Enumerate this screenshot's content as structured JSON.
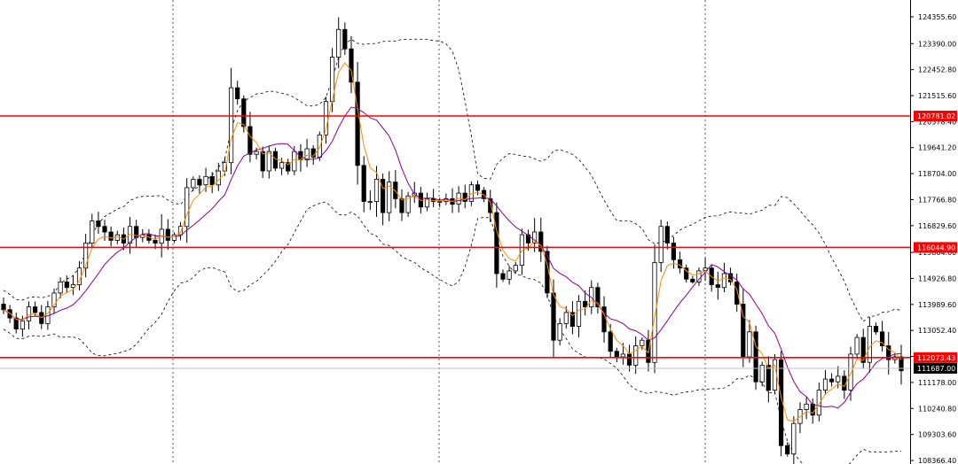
{
  "chart_data": {
    "type": "candlestick",
    "y_axis": {
      "position": "right",
      "ticks": [
        "124355.60",
        "123390.00",
        "122452.80",
        "121515.60",
        "120578.40",
        "119641.20",
        "118704.00",
        "117766.80",
        "116829.60",
        "115864.00",
        "114926.80",
        "113989.60",
        "113052.40",
        "112115.20",
        "111178.00",
        "110240.80",
        "109303.60",
        "108366.40"
      ],
      "min": 108366.4,
      "max": 124355.6
    },
    "grid": {
      "vertical_dotted_separators": 3,
      "horizontal": false
    },
    "horizontal_levels": [
      {
        "value": 120781.02,
        "label": "120781.02",
        "color": "#ff0000"
      },
      {
        "value": 116044.9,
        "label": "116044.90",
        "color": "#ff0000"
      },
      {
        "value": 112073.43,
        "label": "112073.43",
        "color": "#ff0000"
      }
    ],
    "current_price": {
      "value": 111687.0,
      "label": "111687.00",
      "color": "#000000",
      "line_color": "#c0c0c0"
    },
    "indicators": [
      {
        "type": "bollinger_bands",
        "color": "#000000",
        "style": "dashed"
      },
      {
        "type": "moving_average_fast",
        "color": "#ff8c00"
      },
      {
        "type": "moving_average_slow",
        "color": "#8b008b"
      }
    ],
    "closes": [
      113800,
      113500,
      113100,
      113400,
      113900,
      113700,
      113300,
      113900,
      114400,
      114800,
      114600,
      114700,
      115300,
      116200,
      117000,
      116800,
      116600,
      116300,
      116500,
      116200,
      116800,
      116400,
      116500,
      116300,
      116200,
      116700,
      116300,
      116500,
      116800,
      118200,
      118500,
      118300,
      118600,
      118300,
      118800,
      119100,
      121800,
      121400,
      120400,
      119400,
      119500,
      118800,
      119500,
      118900,
      119100,
      118800,
      119500,
      119200,
      119600,
      119300,
      120100,
      121300,
      122900,
      123900,
      123200,
      122000,
      119000,
      117700,
      117700,
      118500,
      117300,
      118400,
      117800,
      117300,
      117900,
      118000,
      117500,
      117800,
      117700,
      117700,
      117800,
      117600,
      118000,
      117700,
      118300,
      118100,
      117800,
      117300,
      115100,
      114900,
      115200,
      115400,
      116500,
      116200,
      116600,
      115900,
      114400,
      112700,
      113300,
      113700,
      113200,
      114100,
      113900,
      114600,
      113900,
      113000,
      112300,
      112100,
      112200,
      111800,
      112500,
      112700,
      111900,
      115500,
      116800,
      116200,
      115600,
      115300,
      114900,
      114800,
      115200,
      115300,
      114700,
      114600,
      115100,
      114800,
      114000,
      112100,
      113000,
      111200,
      111800,
      110900,
      112000,
      108900,
      108600,
      109700,
      110200,
      110400,
      110000,
      110900,
      111300,
      111200,
      111400,
      110900,
      112200,
      112800,
      111900,
      113200,
      113000,
      112500,
      112000,
      112100,
      111600
    ]
  }
}
